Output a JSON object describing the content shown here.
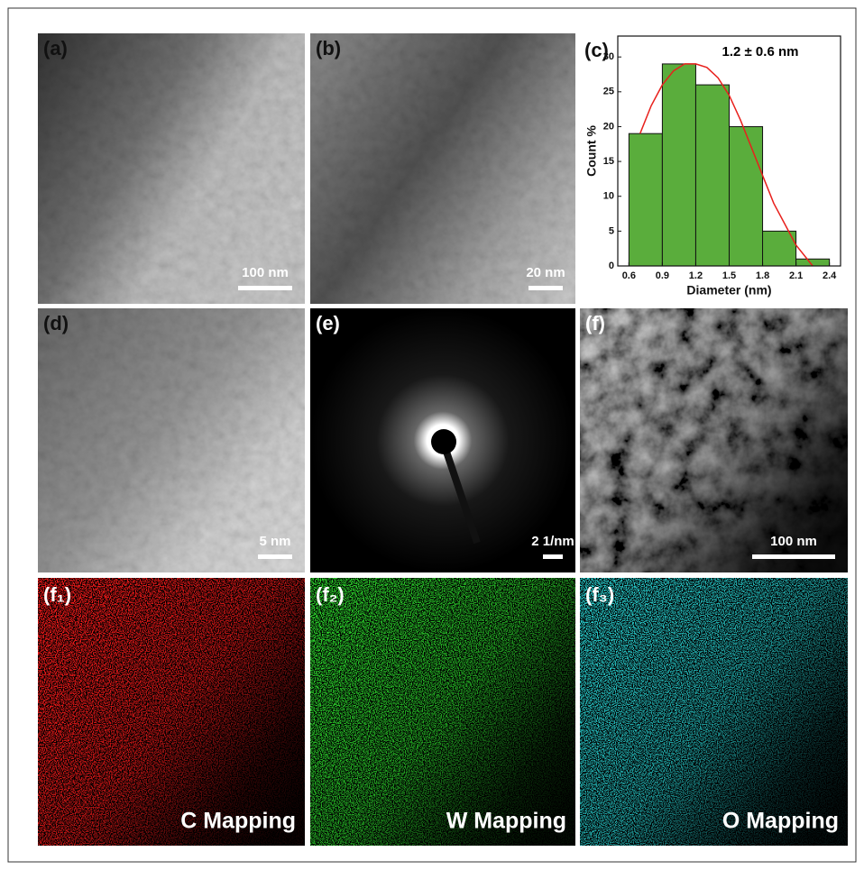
{
  "images": [
    {
      "label": "(a)",
      "scale_bar": "100 nm"
    },
    {
      "label": "(b)",
      "scale_bar": "20 nm"
    },
    {
      "label": "(d)",
      "scale_bar": "5 nm"
    },
    {
      "label": "(e)",
      "scale_bar": "2 1/nm"
    },
    {
      "label": "(f)",
      "scale_bar": "100 nm"
    }
  ],
  "mappings": [
    {
      "label": "(f₁)",
      "caption": "C Mapping",
      "color": "#ff1a1a"
    },
    {
      "label": "(f₂)",
      "caption": "W Mapping",
      "color": "#2edc2e"
    },
    {
      "label": "(f₃)",
      "caption": "O Mapping",
      "color": "#2ad6d6"
    }
  ],
  "chart_data": {
    "type": "histogram",
    "panel_label": "(c)",
    "annotation": "1.2 ± 0.6 nm",
    "x_label": "Diameter (nm)",
    "y_label": "Count %",
    "bins": [
      0.6,
      0.9,
      1.2,
      1.5,
      1.8,
      2.1,
      2.4
    ],
    "values": [
      19,
      29,
      26,
      20,
      5,
      1
    ],
    "color": "#5aad3c",
    "fit": {
      "color": "#e8201c",
      "x": [
        0.7,
        0.8,
        0.9,
        1.0,
        1.1,
        1.2,
        1.3,
        1.4,
        1.5,
        1.6,
        1.7,
        1.8,
        1.9,
        2.0,
        2.1,
        2.2,
        2.25
      ],
      "values": [
        19,
        23,
        26,
        28,
        29,
        29,
        28.5,
        27,
        24.5,
        21,
        17,
        13,
        9,
        6,
        3,
        1,
        0
      ]
    },
    "xlim": [
      0.5,
      2.5
    ],
    "ylim": [
      0,
      33
    ],
    "xticks": [
      0.6,
      0.9,
      1.2,
      1.5,
      1.8,
      2.1,
      2.4
    ],
    "yticks": [
      0,
      5,
      10,
      15,
      20,
      25,
      30
    ]
  }
}
